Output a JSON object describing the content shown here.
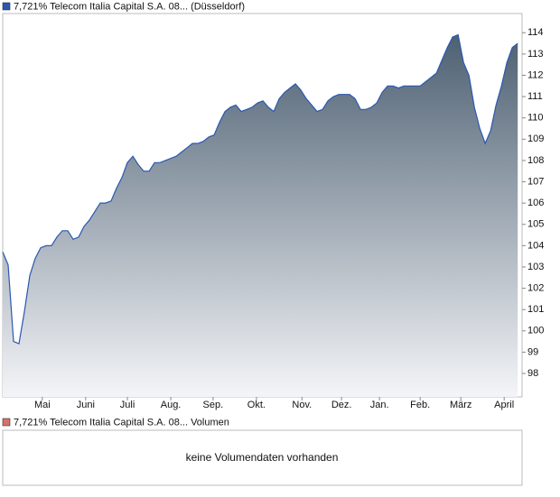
{
  "chart_data": {
    "type": "area",
    "series": [
      {
        "name": "7,721% Telecom Italia Capital S.A. 08... (Düsseldorf)",
        "color": "#2a58b0",
        "values": [
          103.7,
          103.1,
          99.5,
          99.4,
          100.9,
          102.6,
          103.4,
          103.9,
          104.0,
          104.0,
          104.4,
          104.7,
          104.7,
          104.3,
          104.4,
          104.9,
          105.2,
          105.6,
          106.0,
          106.0,
          106.1,
          106.7,
          107.2,
          107.9,
          108.2,
          107.8,
          107.5,
          107.5,
          107.9,
          107.9,
          108.0,
          108.1,
          108.2,
          108.4,
          108.6,
          108.8,
          108.8,
          108.9,
          109.1,
          109.2,
          109.8,
          110.3,
          110.5,
          110.6,
          110.3,
          110.4,
          110.5,
          110.7,
          110.8,
          110.5,
          110.3,
          110.9,
          111.2,
          111.4,
          111.6,
          111.3,
          110.9,
          110.6,
          110.3,
          110.4,
          110.8,
          111.0,
          111.1,
          111.1,
          111.1,
          110.9,
          110.4,
          110.4,
          110.5,
          110.7,
          111.2,
          111.5,
          111.5,
          111.4,
          111.5,
          111.5,
          111.5,
          111.5,
          111.7,
          111.9,
          112.1,
          112.7,
          113.3,
          113.8,
          113.9,
          112.6,
          112.0,
          110.5,
          109.5,
          108.8,
          109.4,
          110.6,
          111.5,
          112.6,
          113.3,
          113.5
        ]
      }
    ],
    "xlim": [
      0,
      95.8
    ],
    "xticks": [
      {
        "value": 7.3,
        "label": "Mai"
      },
      {
        "value": 15.3,
        "label": "Juni"
      },
      {
        "value": 23,
        "label": "Juli"
      },
      {
        "value": 31,
        "label": "Aug."
      },
      {
        "value": 38.8,
        "label": "Sep."
      },
      {
        "value": 46.8,
        "label": "Okt."
      },
      {
        "value": 55.2,
        "label": "Nov."
      },
      {
        "value": 62.5,
        "label": "Dez."
      },
      {
        "value": 69.5,
        "label": "Jan."
      },
      {
        "value": 77,
        "label": "Feb."
      },
      {
        "value": 84.5,
        "label": "März"
      },
      {
        "value": 92.5,
        "label": "April"
      }
    ],
    "ylim": [
      96.9,
      114.9
    ],
    "yticks": [
      98,
      99,
      100,
      101,
      102,
      103,
      104,
      105,
      106,
      107,
      108,
      109,
      110,
      111,
      112,
      113,
      114
    ],
    "area_top_color": "#4d6072",
    "area_bottom_color": "#f4f5f8"
  },
  "volume_panel": {
    "legend": "7,721% Telecom Italia Capital S.A. 08... Volumen",
    "color": "#d9706c",
    "message": "keine Volumendaten vorhanden"
  }
}
